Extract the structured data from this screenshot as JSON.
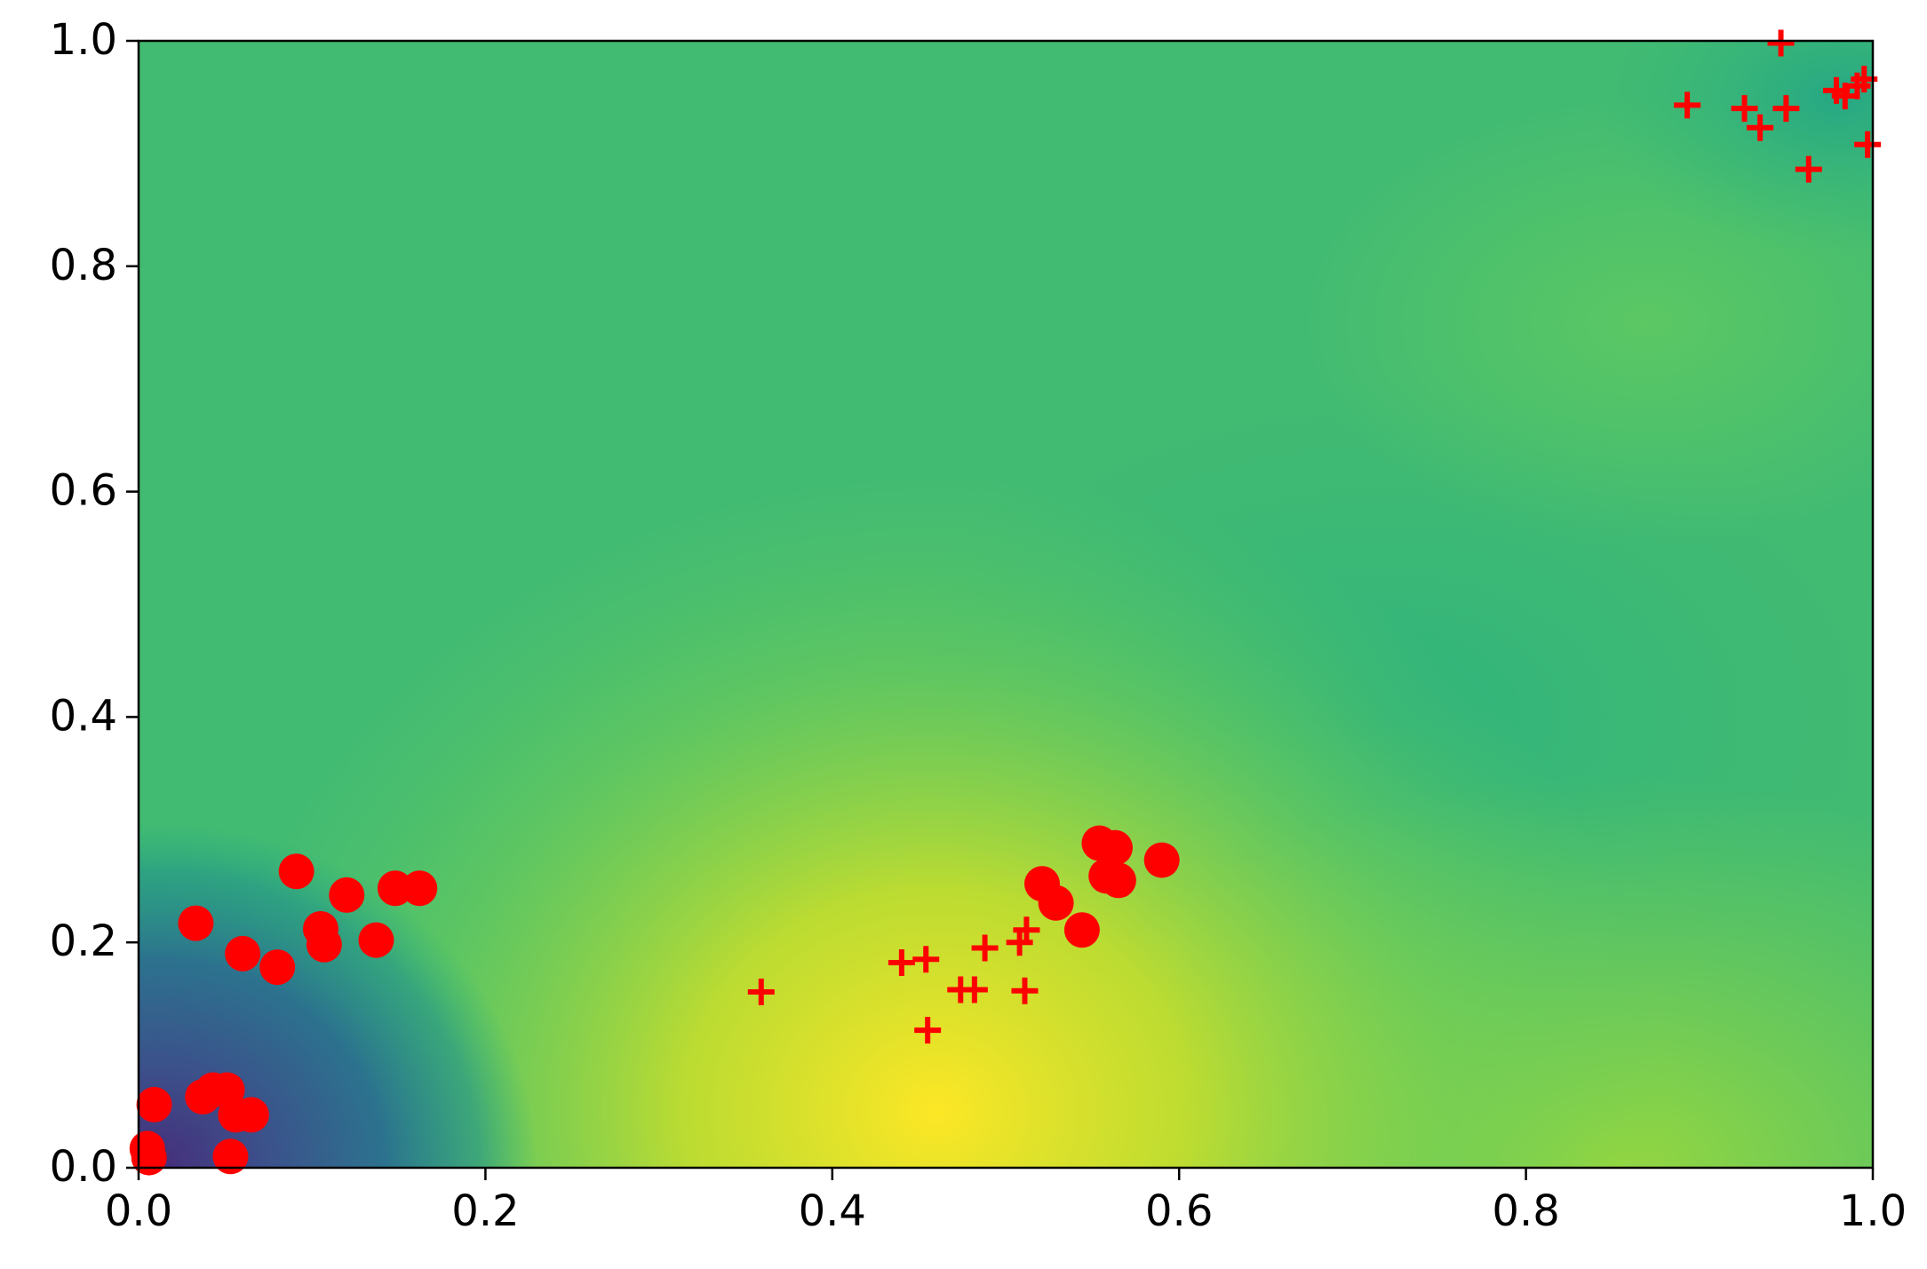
{
  "chart_data": {
    "type": "scatter",
    "xlim": [
      0,
      1
    ],
    "ylim": [
      0,
      1
    ],
    "xticks": [
      {
        "value": 0,
        "label": "0.0"
      },
      0.2,
      0.4,
      0.6,
      0.8,
      {
        "value": 1,
        "label": "1.0"
      }
    ],
    "yticks": [
      {
        "value": 0,
        "label": "0.0"
      },
      0.2,
      0.4,
      0.6,
      0.8,
      {
        "value": 1,
        "label": "1.0"
      }
    ],
    "series": [
      {
        "marker": "circle",
        "color": "#ff0000",
        "x": [
          0.009,
          0.005,
          0.006,
          0.033,
          0.091,
          0.12,
          0.105,
          0.107,
          0.06,
          0.08,
          0.137,
          0.148,
          0.162,
          0.037,
          0.043,
          0.051,
          0.056,
          0.065,
          0.053,
          0.521,
          0.529,
          0.544,
          0.554,
          0.563,
          0.558,
          0.565,
          0.59
        ],
        "y": [
          0.056,
          0.017,
          0.009,
          0.217,
          0.263,
          0.242,
          0.212,
          0.198,
          0.19,
          0.178,
          0.202,
          0.248,
          0.248,
          0.063,
          0.069,
          0.069,
          0.047,
          0.047,
          0.01,
          0.252,
          0.235,
          0.211,
          0.288,
          0.284,
          0.259,
          0.255,
          0.273
        ]
      },
      {
        "marker": "plus",
        "color": "#ff0000",
        "x": [
          0.359,
          0.44,
          0.454,
          0.455,
          0.474,
          0.482,
          0.488,
          0.508,
          0.512,
          0.511,
          0.893,
          0.926,
          0.935,
          0.95,
          0.947,
          0.963,
          0.979,
          0.984,
          0.991,
          0.995,
          0.997
        ],
        "y": [
          0.156,
          0.182,
          0.185,
          0.122,
          0.158,
          0.158,
          0.195,
          0.2,
          0.211,
          0.157,
          0.943,
          0.94,
          0.923,
          0.94,
          0.998,
          0.886,
          0.956,
          0.951,
          0.96,
          0.966,
          0.908
        ]
      }
    ]
  }
}
